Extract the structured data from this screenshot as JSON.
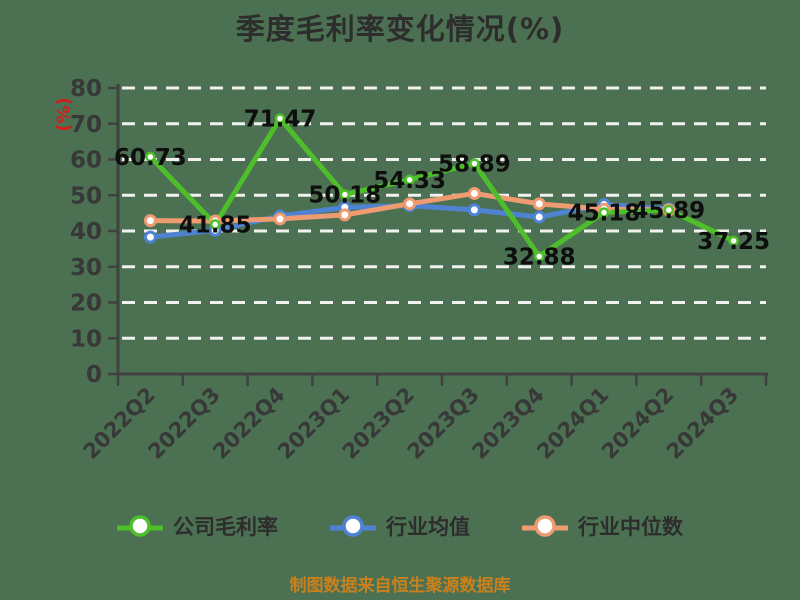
{
  "title": "季度毛利率变化情况(%)",
  "caption": "制图数据来自恒生聚源数据库",
  "colors": {
    "background": "#4b7152",
    "title": "#2d2d2d",
    "axis": "#414141",
    "tick_label": "#383838",
    "grid": "#f1f1ef",
    "data_label": "#0e0e0e",
    "y_name": "#cf1f1f",
    "caption": "#c8811d",
    "legend_text": "#2d2d2d",
    "series_green": "#4fbe2b",
    "series_blue": "#4e83d3",
    "series_orange": "#ef9b72",
    "marker_fill": "#ffffff"
  },
  "chart_data": {
    "type": "line",
    "title": "季度毛利率变化情况(%)",
    "xlabel": "",
    "ylabel": "(%)",
    "ylim": [
      0,
      80
    ],
    "yticks": [
      0,
      10,
      20,
      30,
      40,
      50,
      60,
      70,
      80
    ],
    "grid": true,
    "grid_style": "dashed-white-horizontal",
    "legend_position": "bottom",
    "categories": [
      "2022Q2",
      "2022Q3",
      "2022Q4",
      "2023Q1",
      "2023Q2",
      "2023Q3",
      "2023Q4",
      "2024Q1",
      "2024Q2",
      "2024Q3"
    ],
    "series": [
      {
        "id": "company-gross-margin",
        "name": "公司毛利率",
        "color": "#4fbe2b",
        "values": [
          60.73,
          41.85,
          71.47,
          50.18,
          54.33,
          58.89,
          32.88,
          45.18,
          45.89,
          37.25
        ],
        "value_labels": [
          "60.73",
          "41.85",
          "71.47",
          "50.18",
          "54.33",
          "58.89",
          "32.88",
          "45.18",
          "45.89",
          "37.25"
        ],
        "labels_shown": true
      },
      {
        "id": "industry-average",
        "name": "行业均值",
        "color": "#4e83d3",
        "values": [
          38.3,
          40.2,
          44.2,
          46.6,
          47.1,
          45.9,
          43.9,
          47.4,
          46.2
        ],
        "labels_shown": false
      },
      {
        "id": "industry-median",
        "name": "行业中位数",
        "color": "#ef9b72",
        "values": [
          42.9,
          42.8,
          43.4,
          44.5,
          47.6,
          50.5,
          47.6,
          46.1,
          45.9
        ],
        "labels_shown": false
      }
    ]
  }
}
